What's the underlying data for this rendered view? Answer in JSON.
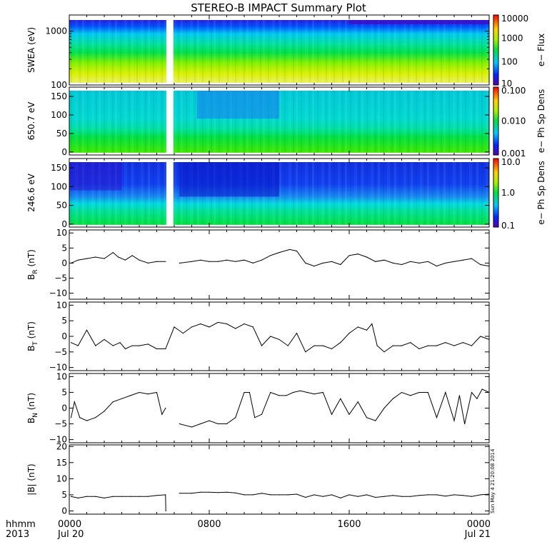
{
  "title": "STEREO-B IMPACT Summary Plot",
  "x_axis": {
    "label_line1": "hhmm",
    "label_line2": "2013",
    "ticks": [
      {
        "hours": 0,
        "line1": "0000",
        "line2": "Jul 20"
      },
      {
        "hours": 8,
        "line1": "0800",
        "line2": ""
      },
      {
        "hours": 16,
        "line1": "1600",
        "line2": ""
      },
      {
        "hours": 24,
        "line1": "0000",
        "line2": "Jul 21"
      }
    ],
    "range_hours": [
      0,
      24
    ],
    "data_gap_hours": [
      5.55,
      5.95
    ]
  },
  "timestamp": "Sun May  4 21:20:08 2014",
  "chart_data": [
    {
      "type": "heatmap",
      "ylabel": "SWEA (eV)",
      "yscale": "log",
      "ylim": [
        100,
        2000
      ],
      "yticks": [
        {
          "v": 100,
          "label": "100"
        },
        {
          "v": 1000,
          "label": "1000"
        }
      ],
      "colorbar": {
        "label": "e− Flux",
        "scale": "log",
        "range": [
          10,
          10000
        ],
        "ticks": [
          {
            "v": 10000,
            "label": "10000"
          },
          {
            "v": 1000,
            "label": "1000"
          },
          {
            "v": 100,
            "label": "100"
          },
          {
            "v": 10,
            "label": "10"
          }
        ]
      }
    },
    {
      "type": "heatmap",
      "ylabel": "650.7 eV",
      "ylim": [
        -8,
        175
      ],
      "yticks": [
        {
          "v": 0,
          "label": "0"
        },
        {
          "v": 50,
          "label": "50"
        },
        {
          "v": 100,
          "label": "100"
        },
        {
          "v": 150,
          "label": "150"
        }
      ],
      "colorbar": {
        "label": "e− Ph Sp Dens",
        "scale": "log",
        "range": [
          0.001,
          0.1
        ],
        "ticks": [
          {
            "v": 0.1,
            "label": "0.100"
          },
          {
            "v": 0.01,
            "label": "0.010"
          },
          {
            "v": 0.001,
            "label": "0.001"
          }
        ]
      }
    },
    {
      "type": "heatmap",
      "ylabel": "246.6 eV",
      "ylim": [
        -8,
        175
      ],
      "yticks": [
        {
          "v": 0,
          "label": "0"
        },
        {
          "v": 50,
          "label": "50"
        },
        {
          "v": 100,
          "label": "100"
        },
        {
          "v": 150,
          "label": "150"
        }
      ],
      "colorbar": {
        "label": "e− Ph Sp Dens",
        "scale": "log",
        "range": [
          0.1,
          10
        ],
        "ticks": [
          {
            "v": 10,
            "label": "10.0"
          },
          {
            "v": 1,
            "label": "1.0"
          },
          {
            "v": 0.1,
            "label": "0.1"
          }
        ]
      }
    },
    {
      "type": "line",
      "ylabel": "B",
      "ylabel_sub": "R",
      "ylabel_unit": " (nT)",
      "ylim": [
        -12,
        11
      ],
      "yticks": [
        {
          "v": -10,
          "label": "−10"
        },
        {
          "v": -5,
          "label": "−5"
        },
        {
          "v": 0,
          "label": "0"
        },
        {
          "v": 5,
          "label": "5"
        },
        {
          "v": 10,
          "label": "10"
        }
      ],
      "x": [
        0.1,
        0.5,
        1.0,
        1.5,
        2.0,
        2.5,
        2.8,
        3.2,
        3.6,
        4.0,
        4.5,
        5.0,
        5.5,
        6.3,
        7.0,
        7.5,
        8.0,
        8.5,
        9.0,
        9.5,
        10.0,
        10.5,
        11.0,
        11.5,
        12.0,
        12.6,
        13.0,
        13.5,
        14.0,
        14.5,
        15.0,
        15.5,
        16.0,
        16.5,
        17.0,
        17.5,
        18.0,
        18.5,
        19.0,
        19.5,
        20.0,
        20.5,
        21.0,
        21.5,
        22.0,
        22.5,
        23.0,
        23.5,
        24.0
      ],
      "y": [
        0,
        1,
        1.5,
        2,
        1.5,
        3.5,
        2,
        1,
        2.5,
        1,
        0,
        0.5,
        0.5,
        0,
        0.5,
        1,
        0.5,
        0.5,
        1,
        0.5,
        1,
        0,
        1,
        2.5,
        3.5,
        4.5,
        4,
        0,
        -1,
        0,
        0.5,
        -0.5,
        2.5,
        3,
        2,
        0.5,
        1,
        0,
        -0.5,
        0.5,
        0,
        0.5,
        -1,
        0,
        0.5,
        1,
        1.5,
        -0.5,
        -1
      ]
    },
    {
      "type": "line",
      "ylabel": "B",
      "ylabel_sub": "T",
      "ylabel_unit": " (nT)",
      "ylim": [
        -11,
        11
      ],
      "yticks": [
        {
          "v": -10,
          "label": "−10"
        },
        {
          "v": -5,
          "label": "−5"
        },
        {
          "v": 0,
          "label": "0"
        },
        {
          "v": 5,
          "label": "5"
        },
        {
          "v": 10,
          "label": "10"
        }
      ],
      "x": [
        0.1,
        0.5,
        1.0,
        1.5,
        2.0,
        2.5,
        2.9,
        3.2,
        3.6,
        4.0,
        4.5,
        5.0,
        5.5,
        6.0,
        6.5,
        7.0,
        7.5,
        8.0,
        8.5,
        9.0,
        9.5,
        10.0,
        10.5,
        11.0,
        11.5,
        12.0,
        12.5,
        13.0,
        13.5,
        14.0,
        14.5,
        15.0,
        15.5,
        16.0,
        16.5,
        17.0,
        17.3,
        17.6,
        18.0,
        18.5,
        19.0,
        19.5,
        20.0,
        20.5,
        21.0,
        21.5,
        22.0,
        22.5,
        23.0,
        23.5,
        24.0
      ],
      "y": [
        -2,
        -3,
        2,
        -3,
        -1,
        -3,
        -2,
        -4,
        -3,
        -3,
        -2.5,
        -4,
        -4,
        3,
        1,
        3,
        4,
        3,
        4.5,
        4,
        2.5,
        4,
        3,
        -3,
        0,
        -1,
        -3,
        1,
        -5,
        -3,
        -3,
        -4,
        -2,
        1,
        3,
        2,
        4,
        -3,
        -5,
        -3,
        -3,
        -2,
        -4,
        -3,
        -3,
        -2,
        -3,
        -2,
        -3,
        0,
        -1
      ]
    },
    {
      "type": "line",
      "ylabel": "B",
      "ylabel_sub": "N",
      "ylabel_unit": " (nT)",
      "ylim": [
        -11,
        11
      ],
      "yticks": [
        {
          "v": -10,
          "label": "−10"
        },
        {
          "v": -5,
          "label": "−5"
        },
        {
          "v": 0,
          "label": "0"
        },
        {
          "v": 5,
          "label": "5"
        },
        {
          "v": 10,
          "label": "10"
        }
      ],
      "x": [
        0.1,
        0.3,
        0.6,
        1.0,
        1.5,
        2.0,
        2.5,
        3.0,
        3.5,
        4.0,
        4.5,
        5.0,
        5.3,
        5.5,
        6.3,
        7.0,
        7.5,
        8.0,
        8.5,
        9.0,
        9.5,
        10.0,
        10.3,
        10.6,
        11.0,
        11.5,
        12.0,
        12.4,
        12.8,
        13.2,
        13.6,
        14.0,
        14.5,
        15.0,
        15.5,
        16.0,
        16.5,
        17.0,
        17.5,
        18.0,
        18.5,
        19.0,
        19.5,
        20.0,
        20.5,
        21.0,
        21.5,
        22.0,
        22.3,
        22.6,
        23.0,
        23.3,
        23.6,
        24.0
      ],
      "y": [
        -3,
        2,
        -3,
        -4,
        -3,
        -1,
        2,
        3,
        4,
        5,
        4.5,
        5,
        -2,
        0,
        -5,
        -6,
        -5,
        -4,
        -5,
        -5,
        -3,
        5,
        5,
        -3,
        -2,
        5,
        4,
        4,
        5,
        5.5,
        5,
        4.5,
        5,
        -2,
        3,
        -2,
        2,
        -3,
        -4,
        0,
        3,
        5,
        4,
        5,
        5,
        -3,
        5,
        -4,
        4,
        -5,
        5,
        3,
        6,
        5
      ]
    },
    {
      "type": "line",
      "ylabel": "|B| (nT)",
      "ylim": [
        -1,
        20.5
      ],
      "yticks": [
        {
          "v": 0,
          "label": "0"
        },
        {
          "v": 5,
          "label": "5"
        },
        {
          "v": 10,
          "label": "10"
        },
        {
          "v": 15,
          "label": "15"
        },
        {
          "v": 20,
          "label": "20"
        }
      ],
      "x": [
        0.1,
        0.5,
        1.0,
        1.5,
        2.0,
        2.5,
        3.0,
        3.5,
        4.0,
        4.5,
        5.0,
        5.5,
        5.52,
        6.3,
        7.0,
        7.5,
        8.0,
        8.5,
        9.0,
        9.5,
        10.0,
        10.5,
        11.0,
        11.5,
        12.0,
        12.5,
        13.0,
        13.5,
        14.0,
        14.5,
        15.0,
        15.5,
        16.0,
        16.5,
        17.0,
        17.5,
        18.0,
        18.5,
        19.0,
        19.5,
        20.0,
        20.5,
        21.0,
        21.5,
        22.0,
        22.5,
        23.0,
        23.5,
        24.0
      ],
      "y": [
        4.5,
        4,
        4.5,
        4.5,
        4,
        4.5,
        4.5,
        4.5,
        4.5,
        4.5,
        4.8,
        5,
        0,
        5.5,
        5.5,
        5.8,
        5.8,
        5.7,
        5.8,
        5.6,
        5,
        5,
        5.5,
        5,
        5,
        5,
        5.2,
        4.2,
        5,
        4.5,
        5,
        4,
        5,
        4.5,
        5,
        4.2,
        4.5,
        4.8,
        4.5,
        4.5,
        4.8,
        5,
        5,
        4.6,
        5,
        4.8,
        4.5,
        5,
        5.2
      ]
    }
  ]
}
